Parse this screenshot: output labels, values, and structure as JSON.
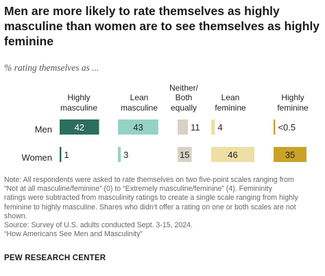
{
  "title": "Men are more likely to rate themselves as highly masculine than women are to see themselves as highly feminine",
  "subtitle": "% rating themselves as ...",
  "columns": [
    {
      "lines": [
        "Highly",
        "masculine"
      ],
      "color": "#2b6f5e"
    },
    {
      "lines": [
        "Lean",
        "masculine"
      ],
      "color": "#94d3c3"
    },
    {
      "lines": [
        "Neither/",
        "Both",
        "equally"
      ],
      "color": "#d7d2c3"
    },
    {
      "lines": [
        "Lean",
        "feminine"
      ],
      "color": "#eedfa4"
    },
    {
      "lines": [
        "Highly",
        "feminine"
      ],
      "color": "#c9a227"
    }
  ],
  "chart_data": {
    "type": "bar",
    "categories": [
      "Highly masculine",
      "Lean masculine",
      "Neither/ Both equally",
      "Lean feminine",
      "Highly feminine"
    ],
    "series": [
      {
        "name": "Men",
        "values": [
          42,
          43,
          11,
          4,
          0.4
        ],
        "labels": [
          "42",
          "43",
          "11",
          "4",
          "<0.5"
        ]
      },
      {
        "name": "Women",
        "values": [
          1,
          3,
          15,
          46,
          35
        ],
        "labels": [
          "1",
          "3",
          "15",
          "46",
          "35"
        ]
      }
    ]
  },
  "notes": [
    "Note: All respondents were asked to rate themselves on two five-point scales ranging from",
    "“Not at all masculine/feminine” (0) to “Extremely masculine/feminine” (4). Femininity",
    "ratings were subtracted from masculinity ratings to create a single scale ranging from highly",
    "feminine to highly masculine. Shares who didn’t offer a rating on one or both scales are not",
    "shown."
  ],
  "source": "Source: Survey of U.S. adults conducted Sept. 3-15, 2024.",
  "report": "“How Americans See Men and Masculinity”",
  "credit": "PEW RESEARCH CENTER"
}
